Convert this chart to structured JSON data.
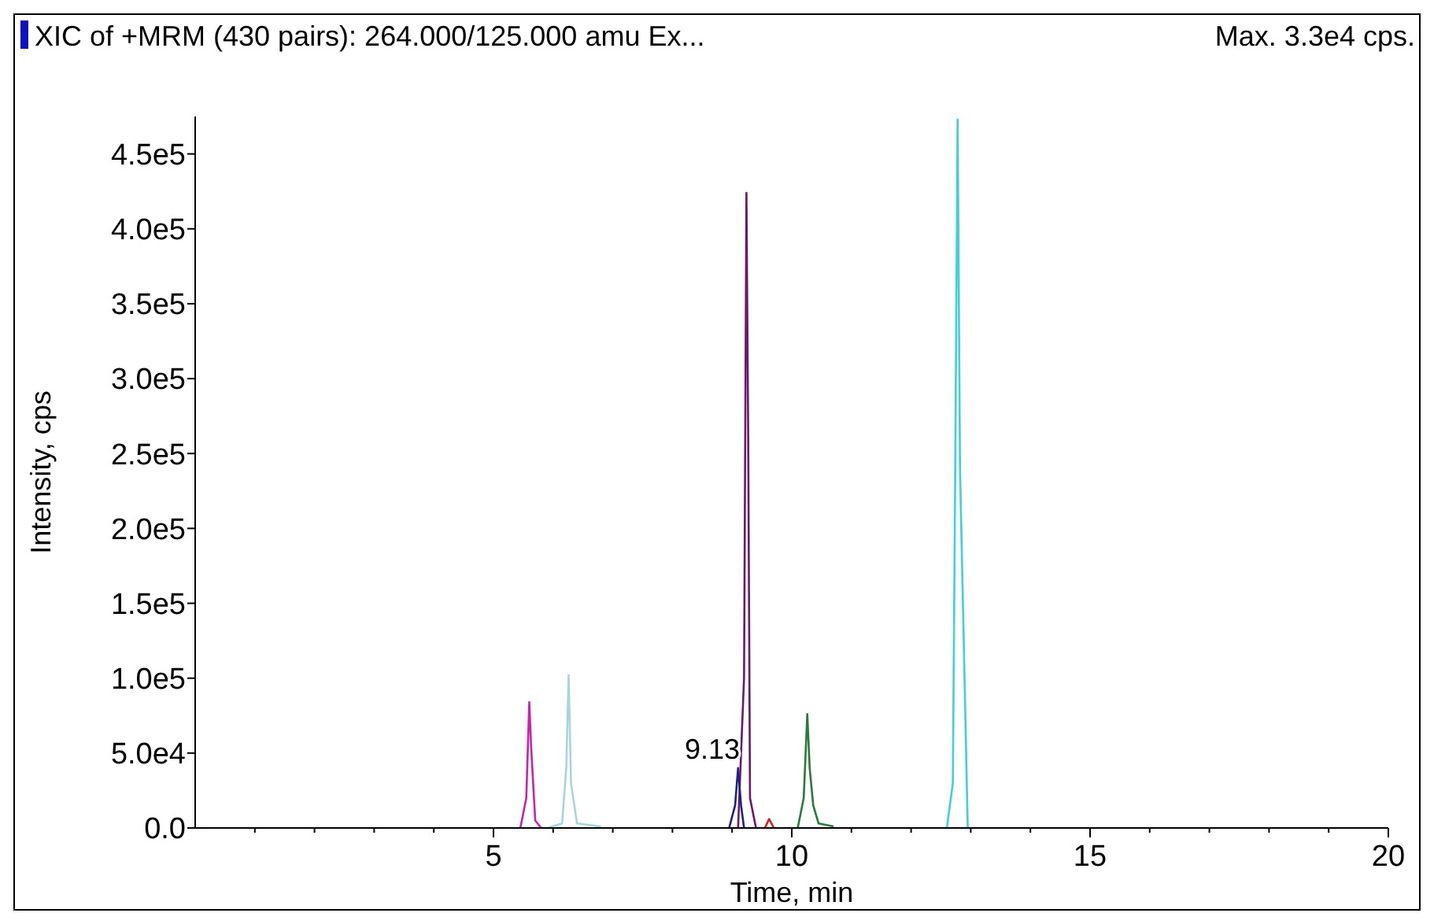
{
  "chart_data": {
    "type": "line",
    "title": "XIC of +MRM (430 pairs): 264.000/125.000 amu Ex...",
    "subtitle": "Max. 3.3e4 cps.",
    "xlabel": "Time, min",
    "ylabel": "Intensity, cps",
    "xlim": [
      0,
      20
    ],
    "ylim": [
      0,
      475000
    ],
    "xticks": [
      {
        "value": 1,
        "label": null
      },
      {
        "value": 2,
        "label": null
      },
      {
        "value": 3,
        "label": null
      },
      {
        "value": 4,
        "label": null
      },
      5,
      {
        "value": 6,
        "label": null
      },
      {
        "value": 7,
        "label": null
      },
      {
        "value": 8,
        "label": null
      },
      {
        "value": 9,
        "label": null
      },
      10,
      {
        "value": 11,
        "label": null
      },
      {
        "value": 12,
        "label": null
      },
      {
        "value": 13,
        "label": null
      },
      {
        "value": 14,
        "label": null
      },
      15,
      {
        "value": 16,
        "label": null
      },
      {
        "value": 17,
        "label": null
      },
      {
        "value": 18,
        "label": null
      },
      {
        "value": 19,
        "label": null
      },
      20
    ],
    "yticks": [
      {
        "value": 0,
        "label": "0.0"
      },
      {
        "value": 50000,
        "label": "5.0e4"
      },
      {
        "value": 100000,
        "label": "1.0e5"
      },
      {
        "value": 150000,
        "label": "1.5e5"
      },
      {
        "value": 200000,
        "label": "2.0e5"
      },
      {
        "value": 250000,
        "label": "2.5e5"
      },
      {
        "value": 300000,
        "label": "3.0e5"
      },
      {
        "value": 350000,
        "label": "3.5e5"
      },
      {
        "value": 400000,
        "label": "4.0e5"
      },
      {
        "value": 450000,
        "label": "4.5e5"
      }
    ],
    "grid": false,
    "marker": "none",
    "line_style": "solid",
    "series": [
      {
        "color": "#cc22aa",
        "x": [
          5.45,
          5.55,
          5.6,
          5.63,
          5.7,
          5.8
        ],
        "values": [
          0,
          20000,
          84000,
          55000,
          5000,
          0
        ]
      },
      {
        "color": "#a8d4e0",
        "x": [
          5.9,
          6.15,
          6.22,
          6.26,
          6.3,
          6.4,
          6.8
        ],
        "values": [
          0,
          3000,
          40000,
          102000,
          30000,
          3000,
          1000
        ]
      },
      {
        "color": "#6a1a6a",
        "x": [
          9.1,
          9.2,
          9.24,
          9.27,
          9.3,
          9.4
        ],
        "values": [
          0,
          100000,
          424000,
          260000,
          20000,
          0
        ]
      },
      {
        "color": "#202080",
        "x": [
          8.95,
          9.05,
          9.1,
          9.15,
          9.2
        ],
        "values": [
          0,
          15000,
          40000,
          15000,
          0
        ]
      },
      {
        "color": "#cc2222",
        "x": [
          9.55,
          9.62,
          9.7
        ],
        "values": [
          0,
          6000,
          0
        ]
      },
      {
        "color": "#2a7a3a",
        "x": [
          10.1,
          10.2,
          10.26,
          10.3,
          10.36,
          10.45,
          10.7
        ],
        "values": [
          0,
          20000,
          76000,
          40000,
          15000,
          3000,
          1000
        ]
      },
      {
        "color": "#40d0d8",
        "x": [
          12.6,
          12.7,
          12.74,
          12.78,
          12.82,
          12.95
        ],
        "values": [
          0,
          30000,
          240000,
          473000,
          240000,
          0
        ]
      }
    ],
    "annotations": [
      {
        "text": "9.13",
        "x": 9.13,
        "y": 40000
      }
    ]
  }
}
